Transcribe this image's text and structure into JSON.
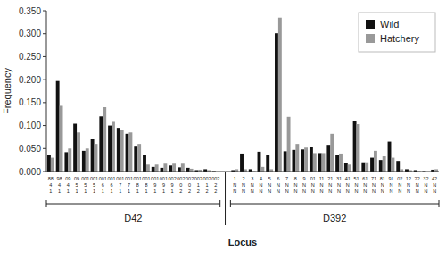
{
  "chart_data": {
    "type": "bar",
    "xlabel": "Locus",
    "ylabel": "Frequency",
    "ylim": [
      0.0,
      0.35
    ],
    "yticks": [
      {
        "value": 0.0,
        "label": "0.000"
      },
      {
        "value": 0.05,
        "label": "0.050"
      },
      {
        "value": 0.1,
        "label": "0.100"
      },
      {
        "value": 0.15,
        "label": "0.150"
      },
      {
        "value": 0.2,
        "label": "0.200"
      },
      {
        "value": 0.25,
        "label": "0.250"
      },
      {
        "value": 0.3,
        "label": "0.300"
      },
      {
        "value": 0.35,
        "label": "0.350"
      }
    ],
    "grid": false,
    "legend": "upper right",
    "categories": [
      "88\n4\n1",
      "98\n4\n1",
      "09\n4\n1",
      "09\n5\n1",
      "001\n5\n1",
      "001\n5\n1",
      "001\n6\n1",
      "001\n6\n1",
      "001\n7\n1",
      "001\n7\n1",
      "001\n8\n1",
      "001\n8\n1",
      "001\n9\n1",
      "001\n9\n1",
      "002\n9\n1",
      "002\n0\n2",
      "002\n0\n2",
      "002\n1\n2",
      "002\n1\n2",
      "002\n2\n2",
      "1\nN\nN",
      "2\nN\nN",
      "3\nN\nN",
      "4\nN\nN",
      "5\nN\nN",
      "6\nN\nN",
      "7\nN\nN",
      "8\nN\nN",
      "9\nN\nN",
      "01\nN\nN",
      "11\nN\nN",
      "21\nN\nN",
      "31\nN\nN",
      "41\nN\nN",
      "51\nN\nN",
      "61\nN\nN",
      "71\nN\nN",
      "81\nN\nN",
      "91\nN\nN",
      "02\nN\nN",
      "12\nN\nN",
      "22\nN\nN",
      "32\nN\nN",
      "42\nN\nN"
    ],
    "annotations": [
      {
        "text": "D42",
        "span": [
          0,
          19
        ]
      },
      {
        "text": "D392",
        "span": [
          20,
          43
        ]
      }
    ],
    "series": [
      {
        "name": "Wild",
        "color": "#111111",
        "values": [
          0.035,
          0.197,
          0.042,
          0.104,
          0.045,
          0.07,
          0.12,
          0.1,
          0.095,
          0.082,
          0.056,
          0.036,
          0.01,
          0.008,
          0.013,
          0.009,
          0.008,
          0.003,
          0.005,
          0.001,
          0.003,
          0.039,
          0.005,
          0.043,
          0.036,
          0.301,
          0.044,
          0.047,
          0.048,
          0.053,
          0.04,
          0.058,
          0.036,
          0.019,
          0.11,
          0.02,
          0.03,
          0.025,
          0.065,
          0.023,
          0.005,
          0.003,
          0.001,
          0.004
        ]
      },
      {
        "name": "Hatchery",
        "color": "#999999",
        "values": [
          0.03,
          0.143,
          0.05,
          0.085,
          0.05,
          0.06,
          0.14,
          0.108,
          0.09,
          0.085,
          0.06,
          0.015,
          0.015,
          0.017,
          0.017,
          0.017,
          0.006,
          0.004,
          0.003,
          0.0,
          0.005,
          0.005,
          0.001,
          0.01,
          0.005,
          0.335,
          0.119,
          0.06,
          0.052,
          0.04,
          0.04,
          0.082,
          0.039,
          0.015,
          0.103,
          0.02,
          0.045,
          0.033,
          0.03,
          0.005,
          0.003,
          0.001,
          0.0,
          0.005
        ]
      }
    ]
  }
}
